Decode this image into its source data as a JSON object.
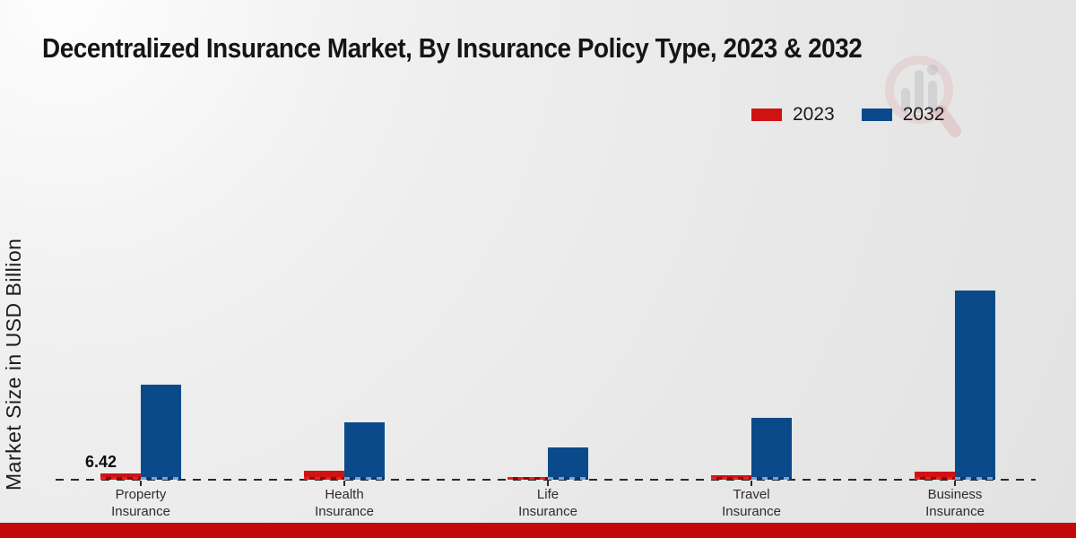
{
  "title": "Decentralized Insurance Market, By Insurance Policy Type, 2023 & 2032",
  "y_axis_label": "Market Size in USD Billion",
  "legend": {
    "items": [
      {
        "label": "2023",
        "color": "#cf1313"
      },
      {
        "label": "2032",
        "color": "#0b4a8a"
      }
    ]
  },
  "icons": {
    "watermark": "magnifier-bar-chart-logo-watermark"
  },
  "footer": {
    "bar_color": "#c20808"
  },
  "chart_data": {
    "type": "bar",
    "title": "Decentralized Insurance Market, By Insurance Policy Type, 2023 & 2032",
    "xlabel": "",
    "ylabel": "Market Size in USD Billion",
    "categories": [
      "Property Insurance",
      "Health Insurance",
      "Life Insurance",
      "Travel Insurance",
      "Business Insurance"
    ],
    "series": [
      {
        "name": "2023",
        "color": "#cf1313",
        "values": [
          6.42,
          9.5,
          3.2,
          4.3,
          8.0
        ],
        "data_labels": [
          "6.42",
          null,
          null,
          null,
          null
        ]
      },
      {
        "name": "2032",
        "color": "#0b4a8a",
        "values": [
          97,
          59,
          33,
          63,
          194
        ],
        "data_labels": [
          null,
          null,
          null,
          null,
          null
        ]
      }
    ],
    "value_axis": {
      "unit": "USD Billion",
      "baseline": 0,
      "gridlines": false,
      "tick_labels_shown": false
    },
    "legend_position": "top-right",
    "baseline_style": "dashed",
    "values_note": "Only 6.42 (2023 Property Insurance) is printed on the chart; all other values estimated from bar heights."
  }
}
